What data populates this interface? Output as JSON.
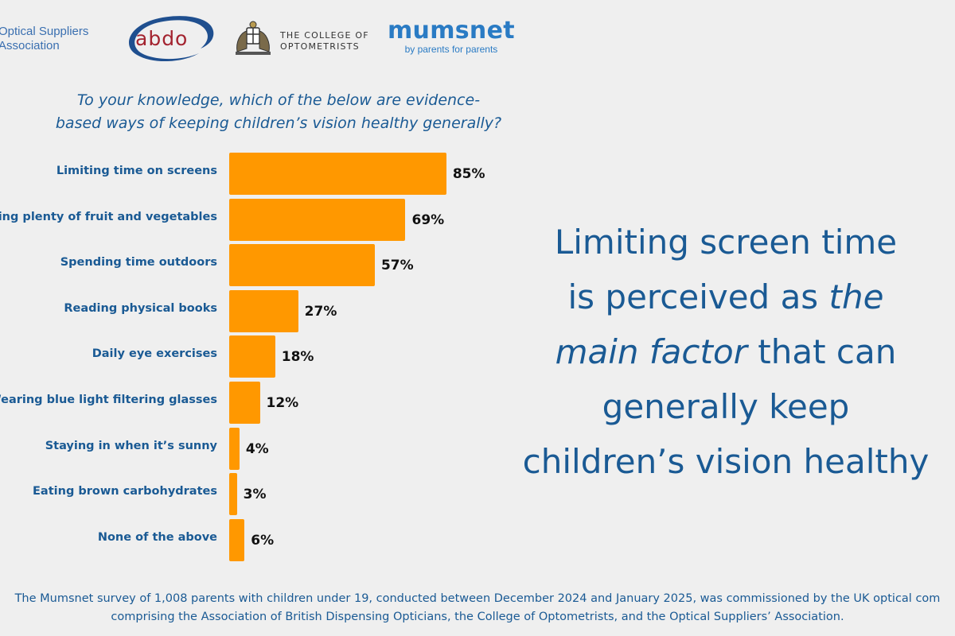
{
  "logos": {
    "osa": {
      "line1": "Optical Suppliers",
      "line2": "Association"
    },
    "abdo": {
      "text": "abdo"
    },
    "college": {
      "line1": "THE COLLEGE OF",
      "line2": "OPTOMETRISTS"
    },
    "mumsnet": {
      "word": "mumsnet",
      "tagline": "by parents for parents"
    }
  },
  "colors": {
    "bar": "#ff9800",
    "text_blue": "#1a5a94",
    "background": "#efefef"
  },
  "headline": {
    "line1": "Limiting screen time",
    "line2_a": "is perceived as ",
    "line2_b": "the",
    "line3_a": "main factor",
    "line3_b": " that can",
    "line4": "generally keep",
    "line5": "children’s vision healthy"
  },
  "footnote": {
    "line1": "The Mumsnet survey of 1,008 parents with children under 19, conducted between December 2024 and January 2025, was commissioned by the UK optical com",
    "line2": "comprising the Association of British Dispensing Opticians, the College of Optometrists, and the Optical Suppliers’ Association."
  },
  "chart_data": {
    "type": "bar",
    "orientation": "horizontal",
    "title": "To your knowledge, which of the below are evidence-based ways of keeping children’s vision healthy generally?",
    "title_line1": "To your knowledge, which of the below are evidence-",
    "title_line2": "based ways of keeping children’s vision healthy generally?",
    "categories": [
      "Limiting time on screens",
      "Eating plenty of fruit and vegetables",
      "Spending time outdoors",
      "Reading physical books",
      "Daily eye exercises",
      "Wearing blue light filtering glasses",
      "Staying in when it’s sunny",
      "Eating brown carbohydrates",
      "None of the above"
    ],
    "values": [
      85,
      69,
      57,
      27,
      18,
      12,
      4,
      3,
      6
    ],
    "value_labels": [
      "85%",
      "69%",
      "57%",
      "27%",
      "18%",
      "12%",
      "4%",
      "3%",
      "6%"
    ],
    "unit": "%",
    "xlim": [
      0,
      100
    ],
    "grid": false,
    "legend": "none"
  }
}
